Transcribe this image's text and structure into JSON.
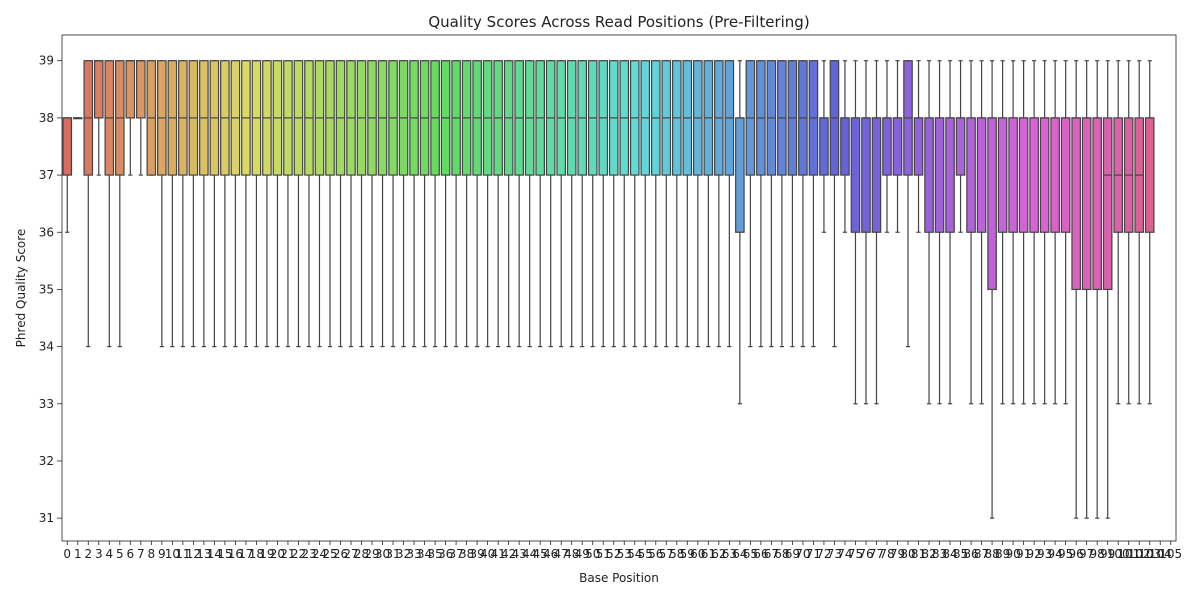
{
  "chart_data": {
    "type": "box",
    "title": "Quality Scores Across Read Positions (Pre-Filtering)",
    "xlabel": "Base Position",
    "ylabel": "Phred Quality Score",
    "ylim": [
      30.6,
      39.45
    ],
    "yticks": [
      31,
      32,
      33,
      34,
      35,
      36,
      37,
      38,
      39
    ],
    "grid": false,
    "legend": "none",
    "palette": "husl",
    "categories": [
      0,
      1,
      2,
      3,
      4,
      5,
      6,
      7,
      8,
      9,
      10,
      11,
      12,
      13,
      14,
      15,
      16,
      17,
      18,
      19,
      20,
      21,
      22,
      23,
      24,
      25,
      26,
      27,
      28,
      29,
      30,
      31,
      32,
      33,
      34,
      35,
      36,
      37,
      38,
      39,
      40,
      41,
      42,
      43,
      44,
      45,
      46,
      47,
      48,
      49,
      50,
      51,
      52,
      53,
      54,
      55,
      56,
      57,
      58,
      59,
      60,
      61,
      62,
      63,
      64,
      65,
      66,
      67,
      68,
      69,
      70,
      71,
      72,
      73,
      74,
      75,
      76,
      77,
      78,
      79,
      80,
      81,
      82,
      83,
      84,
      85,
      86,
      87,
      88,
      89,
      90,
      91,
      92,
      93,
      94,
      95,
      96,
      97,
      98,
      99,
      100,
      101,
      102,
      103,
      104,
      105
    ],
    "boxes": [
      [
        36,
        37,
        38,
        38,
        38
      ],
      [
        38,
        38,
        38,
        38,
        38
      ],
      [
        34,
        37,
        38,
        39,
        39
      ],
      [
        37,
        38,
        39,
        39,
        39
      ],
      [
        34,
        37,
        38,
        39,
        39
      ],
      [
        34,
        37,
        38,
        39,
        39
      ],
      [
        37,
        38,
        39,
        39,
        39
      ],
      [
        37,
        38,
        39,
        39,
        39
      ],
      [
        37,
        37,
        38,
        39,
        39
      ],
      [
        34,
        37,
        38,
        39,
        39
      ],
      [
        34,
        37,
        38,
        39,
        39
      ],
      [
        34,
        37,
        38,
        39,
        39
      ],
      [
        34,
        37,
        38,
        39,
        39
      ],
      [
        34,
        37,
        38,
        39,
        39
      ],
      [
        34,
        37,
        38,
        39,
        39
      ],
      [
        34,
        37,
        38,
        39,
        39
      ],
      [
        34,
        37,
        38,
        39,
        39
      ],
      [
        34,
        37,
        38,
        39,
        39
      ],
      [
        34,
        37,
        38,
        39,
        39
      ],
      [
        34,
        37,
        38,
        39,
        39
      ],
      [
        34,
        37,
        38,
        39,
        39
      ],
      [
        34,
        37,
        38,
        39,
        39
      ],
      [
        34,
        37,
        38,
        39,
        39
      ],
      [
        34,
        37,
        38,
        39,
        39
      ],
      [
        34,
        37,
        38,
        39,
        39
      ],
      [
        34,
        37,
        38,
        39,
        39
      ],
      [
        34,
        37,
        38,
        39,
        39
      ],
      [
        34,
        37,
        38,
        39,
        39
      ],
      [
        34,
        37,
        38,
        39,
        39
      ],
      [
        34,
        37,
        38,
        39,
        39
      ],
      [
        34,
        37,
        38,
        39,
        39
      ],
      [
        34,
        37,
        38,
        39,
        39
      ],
      [
        34,
        37,
        38,
        39,
        39
      ],
      [
        34,
        37,
        38,
        39,
        39
      ],
      [
        34,
        37,
        38,
        39,
        39
      ],
      [
        34,
        37,
        38,
        39,
        39
      ],
      [
        34,
        37,
        38,
        39,
        39
      ],
      [
        34,
        37,
        38,
        39,
        39
      ],
      [
        34,
        37,
        38,
        39,
        39
      ],
      [
        34,
        37,
        38,
        39,
        39
      ],
      [
        34,
        37,
        38,
        39,
        39
      ],
      [
        34,
        37,
        38,
        39,
        39
      ],
      [
        34,
        37,
        38,
        39,
        39
      ],
      [
        34,
        37,
        38,
        39,
        39
      ],
      [
        34,
        37,
        38,
        39,
        39
      ],
      [
        34,
        37,
        38,
        39,
        39
      ],
      [
        34,
        37,
        38,
        39,
        39
      ],
      [
        34,
        37,
        38,
        39,
        39
      ],
      [
        34,
        37,
        38,
        39,
        39
      ],
      [
        34,
        37,
        38,
        39,
        39
      ],
      [
        34,
        37,
        38,
        39,
        39
      ],
      [
        34,
        37,
        38,
        39,
        39
      ],
      [
        34,
        37,
        38,
        39,
        39
      ],
      [
        34,
        37,
        38,
        39,
        39
      ],
      [
        34,
        37,
        38,
        39,
        39
      ],
      [
        34,
        37,
        38,
        39,
        39
      ],
      [
        34,
        37,
        38,
        39,
        39
      ],
      [
        34,
        37,
        38,
        39,
        39
      ],
      [
        34,
        37,
        38,
        39,
        39
      ],
      [
        34,
        37,
        38,
        39,
        39
      ],
      [
        34,
        37,
        38,
        39,
        39
      ],
      [
        34,
        37,
        38,
        39,
        39
      ],
      [
        34,
        37,
        38,
        39,
        39
      ],
      [
        34,
        37,
        38,
        39,
        39
      ],
      [
        33,
        36,
        38,
        38,
        39
      ],
      [
        34,
        37,
        38,
        39,
        39
      ],
      [
        34,
        37,
        38,
        39,
        39
      ],
      [
        34,
        37,
        38,
        39,
        39
      ],
      [
        34,
        37,
        38,
        39,
        39
      ],
      [
        34,
        37,
        38,
        39,
        39
      ],
      [
        34,
        37,
        38,
        39,
        39
      ],
      [
        34,
        37,
        38,
        39,
        39
      ],
      [
        36,
        37,
        38,
        38,
        39
      ],
      [
        34,
        37,
        38,
        39,
        39
      ],
      [
        36,
        37,
        38,
        38,
        39
      ],
      [
        33,
        36,
        38,
        38,
        39
      ],
      [
        33,
        36,
        38,
        38,
        39
      ],
      [
        33,
        36,
        38,
        38,
        39
      ],
      [
        36,
        37,
        38,
        38,
        39
      ],
      [
        36,
        37,
        38,
        38,
        39
      ],
      [
        34,
        37,
        38,
        39,
        39
      ],
      [
        36,
        37,
        38,
        38,
        39
      ],
      [
        33,
        36,
        38,
        38,
        39
      ],
      [
        33,
        36,
        38,
        38,
        39
      ],
      [
        33,
        36,
        38,
        38,
        39
      ],
      [
        36,
        37,
        38,
        38,
        39
      ],
      [
        33,
        36,
        38,
        38,
        39
      ],
      [
        33,
        36,
        38,
        38,
        39
      ],
      [
        31,
        35,
        38,
        38,
        39
      ],
      [
        33,
        36,
        38,
        38,
        39
      ],
      [
        33,
        36,
        38,
        38,
        39
      ],
      [
        33,
        36,
        38,
        38,
        39
      ],
      [
        33,
        36,
        38,
        38,
        39
      ],
      [
        33,
        36,
        38,
        38,
        39
      ],
      [
        33,
        36,
        38,
        38,
        39
      ],
      [
        33,
        36,
        38,
        38,
        39
      ],
      [
        31,
        35,
        38,
        38,
        39
      ],
      [
        31,
        35,
        38,
        38,
        39
      ],
      [
        31,
        35,
        38,
        38,
        39
      ],
      [
        31,
        35,
        37,
        38,
        39
      ],
      [
        33,
        36,
        37,
        38,
        39
      ],
      [
        33,
        36,
        37,
        38,
        39
      ],
      [
        33,
        36,
        37,
        38,
        39
      ],
      [
        33,
        36,
        38,
        38,
        39
      ]
    ]
  }
}
